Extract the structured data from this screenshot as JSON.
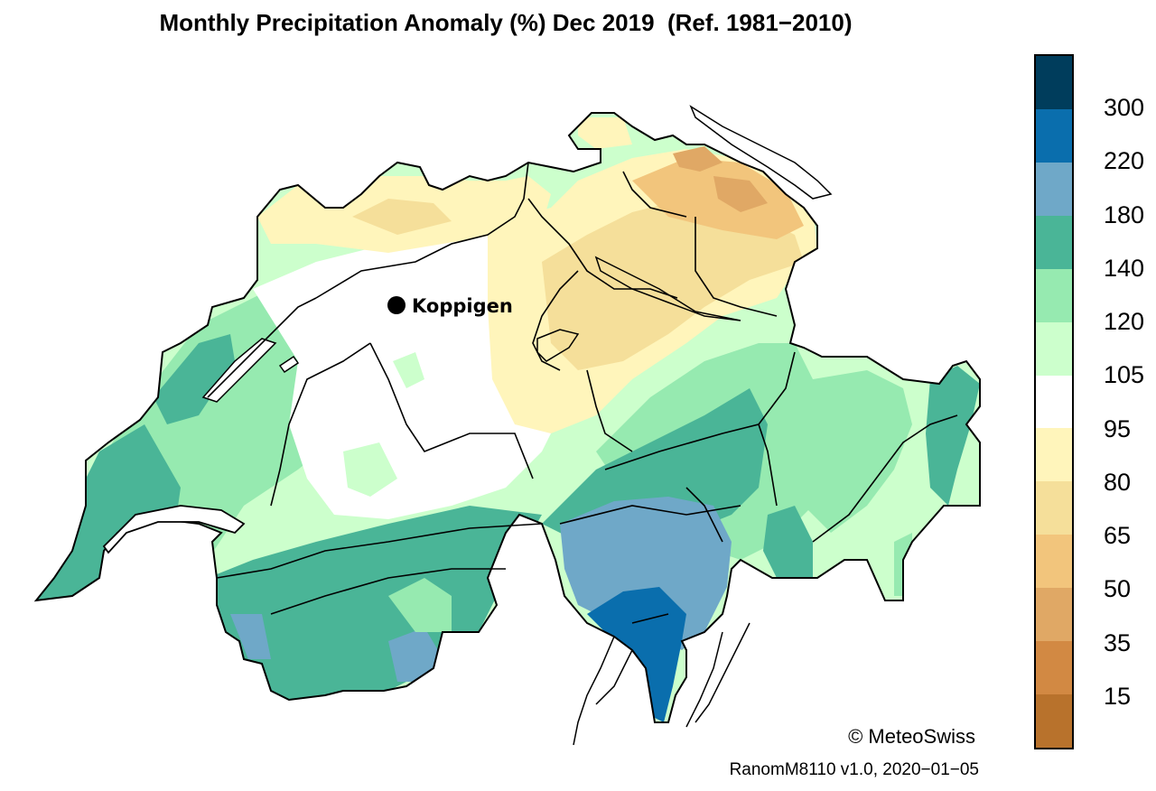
{
  "title": "Monthly Precipitation Anomaly (%) Dec 2019  (Ref. 1981−2010)",
  "station": {
    "name": "Koppigen"
  },
  "credits": {
    "copyright": "© MeteoSwiss",
    "version": "RanomM8110 v1.0, 2020−01−05"
  },
  "legend": {
    "colors": [
      "#003d5c",
      "#0a6ead",
      "#6fa8c8",
      "#4ab597",
      "#96eab0",
      "#ccffcc",
      "#ffffff",
      "#fff5bb",
      "#f5df9a",
      "#f2c57c",
      "#e0a865",
      "#d28943",
      "#b8722c"
    ],
    "labels": [
      "300",
      "220",
      "180",
      "140",
      "120",
      "105",
      "95",
      "80",
      "65",
      "50",
      "35",
      "15"
    ]
  },
  "regions": {
    "dry": "#f5df9a",
    "very_dry": "#e0a865",
    "wet": "#96eab0",
    "very_wet": "#4ab597",
    "extreme_wet": "#6fa8c8",
    "peak_wet": "#0a6ead"
  }
}
